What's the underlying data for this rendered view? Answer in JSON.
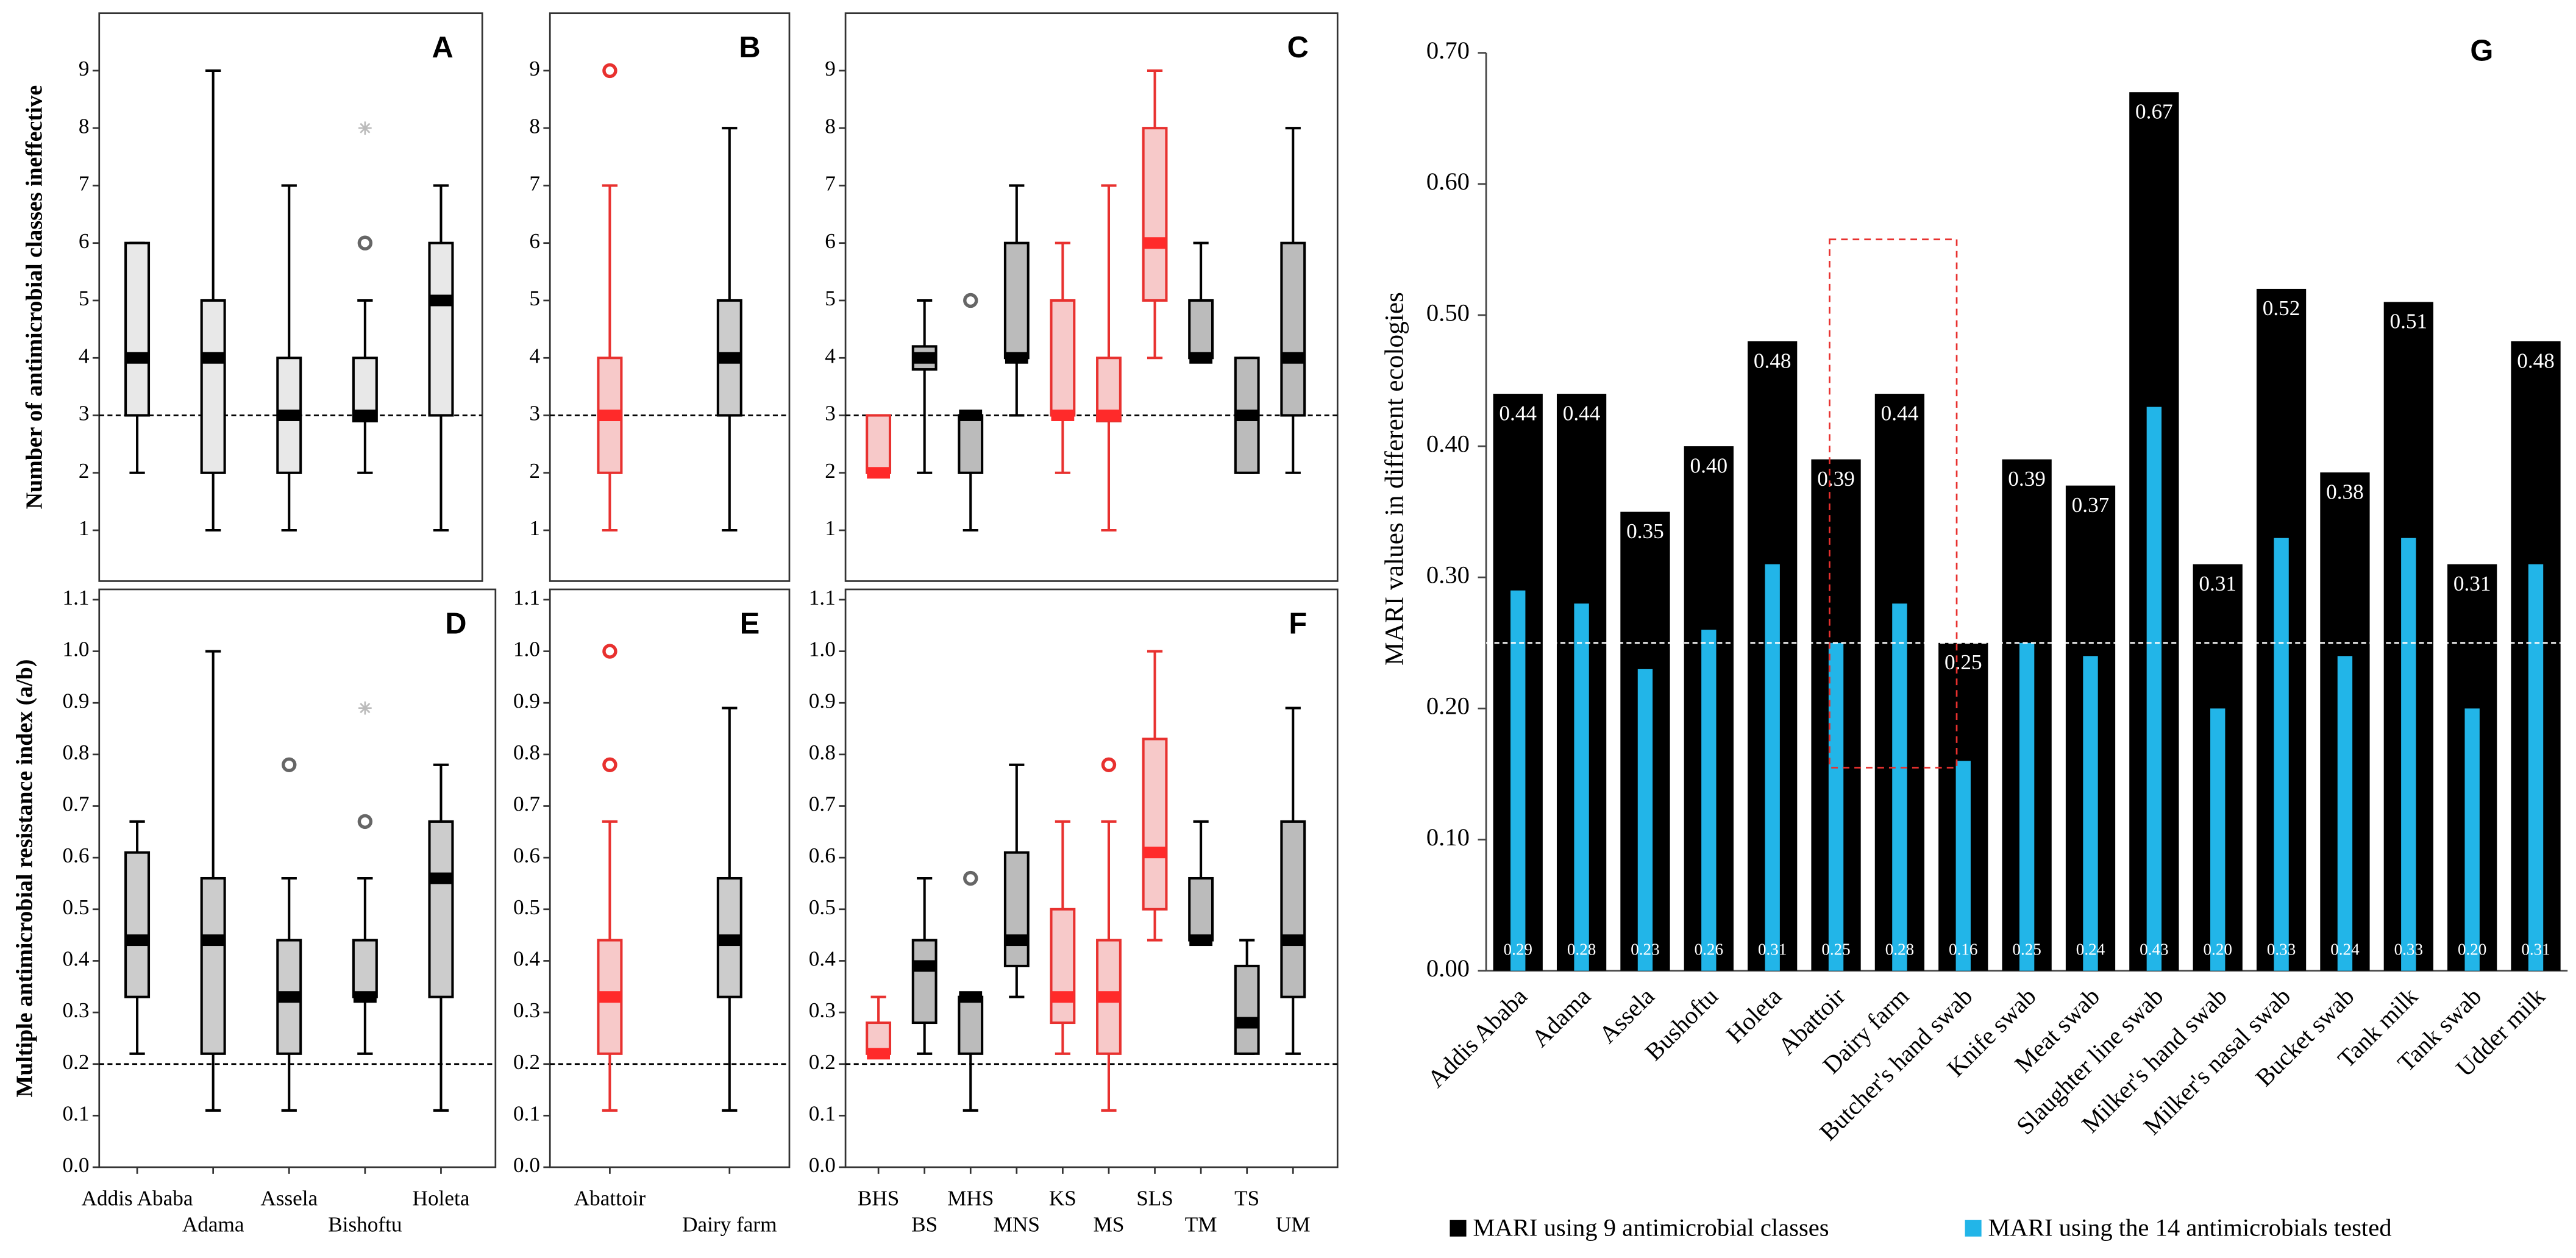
{
  "chart_data": [
    {
      "type": "box",
      "title": "A",
      "y_label": "Number of antimicrobial classes ineffective",
      "ylim": [
        0,
        10
      ],
      "yticks": [
        1,
        2,
        3,
        4,
        5,
        6,
        7,
        8,
        9
      ],
      "reference_line": 3,
      "colors": [
        "#000000",
        "#000000",
        "#000000",
        "#000000",
        "#000000"
      ],
      "fills": [
        "#e8e8e8",
        "#e8e8e8",
        "#e8e8e8",
        "#e8e8e8",
        "#e8e8e8"
      ],
      "whisker_low": [
        2,
        1,
        1,
        2,
        1
      ],
      "q1": [
        3,
        2,
        2,
        2.9,
        3
      ],
      "median": [
        4,
        4,
        3,
        3,
        5
      ],
      "q3": [
        6,
        5,
        4,
        4,
        6
      ],
      "whisker_high": [
        6,
        9,
        7,
        5,
        7
      ],
      "outliers": [
        [],
        [],
        [],
        [
          6
        ],
        []
      ],
      "extremes": [
        [],
        [],
        [],
        [
          8
        ],
        []
      ]
    },
    {
      "type": "box",
      "title": "B",
      "ylim": [
        0,
        10
      ],
      "yticks": [
        1,
        2,
        3,
        4,
        5,
        6,
        7,
        8,
        9
      ],
      "reference_line": 3,
      "colors": [
        "#e8312f",
        "#000000"
      ],
      "fills": [
        "#f7c9c9",
        "#cccccc"
      ],
      "whisker_low": [
        1,
        1
      ],
      "q1": [
        2,
        3
      ],
      "median": [
        3,
        4
      ],
      "q3": [
        4,
        5
      ],
      "whisker_high": [
        7,
        8
      ],
      "outliers": [
        [
          9
        ],
        []
      ],
      "extremes": [
        [],
        []
      ]
    },
    {
      "type": "box",
      "title": "C",
      "ylim": [
        0,
        10
      ],
      "yticks": [
        1,
        2,
        3,
        4,
        5,
        6,
        7,
        8,
        9
      ],
      "reference_line": 3,
      "colors": [
        "#e8312f",
        "#000000",
        "#000000",
        "#000000",
        "#e8312f",
        "#e8312f",
        "#e8312f",
        "#000000",
        "#000000",
        "#000000"
      ],
      "fills": [
        "#f7c9c9",
        "#bbbbbb",
        "#bbbbbb",
        "#bbbbbb",
        "#f7c9c9",
        "#f7c9c9",
        "#f7c9c9",
        "#bbbbbb",
        "#bbbbbb",
        "#bbbbbb"
      ],
      "whisker_low": [
        2,
        2,
        1,
        3,
        2,
        1,
        4,
        4,
        2,
        2
      ],
      "q1": [
        2,
        3.8,
        2,
        4,
        3,
        2.9,
        5,
        4,
        2,
        3
      ],
      "median": [
        2,
        4,
        3,
        4,
        3,
        3,
        6,
        4,
        3,
        4
      ],
      "q3": [
        3,
        4.2,
        3,
        6,
        5,
        4,
        8,
        5,
        4,
        6
      ],
      "whisker_high": [
        3,
        5,
        3,
        7,
        6,
        7,
        9,
        6,
        4,
        8
      ],
      "outliers": [
        [],
        [],
        [
          5
        ],
        [],
        [],
        [],
        [],
        [],
        [],
        []
      ],
      "extremes": [
        [],
        [],
        [],
        [],
        [],
        [],
        [],
        [],
        [],
        []
      ]
    },
    {
      "type": "box",
      "title": "D",
      "y_label": "Multiple antimicrobial resistance index (a/b)",
      "categories": [
        "Addis Ababa",
        "Adama",
        "Assela",
        "Bishoftu",
        "Holeta"
      ],
      "ylim": [
        0,
        1.12
      ],
      "yticks": [
        {
          "value": 0,
          "label": "0.0"
        },
        0.1,
        0.2,
        0.3,
        0.4,
        0.5,
        0.6,
        0.7,
        0.8,
        0.9,
        {
          "value": 1,
          "label": "1.0"
        },
        1.1
      ],
      "reference_line": 0.2,
      "colors": [
        "#000000",
        "#000000",
        "#000000",
        "#000000",
        "#000000"
      ],
      "fills": [
        "#cccccc",
        "#cccccc",
        "#cccccc",
        "#cccccc",
        "#cccccc"
      ],
      "whisker_low": [
        0.22,
        0.11,
        0.11,
        0.22,
        0.11
      ],
      "q1": [
        0.33,
        0.22,
        0.22,
        0.33,
        0.33
      ],
      "median": [
        0.44,
        0.44,
        0.33,
        0.33,
        0.56
      ],
      "q3": [
        0.61,
        0.56,
        0.44,
        0.44,
        0.67
      ],
      "whisker_high": [
        0.67,
        1.0,
        0.56,
        0.56,
        0.78
      ],
      "outliers": [
        [],
        [],
        [
          0.78
        ],
        [
          0.67
        ],
        []
      ],
      "extremes": [
        [],
        [],
        [],
        [
          0.89
        ],
        []
      ]
    },
    {
      "type": "box",
      "title": "E",
      "categories": [
        "Abattoir",
        "Dairy farm"
      ],
      "ylim": [
        0,
        1.12
      ],
      "yticks": [
        {
          "value": 0,
          "label": "0.0"
        },
        0.1,
        0.2,
        0.3,
        0.4,
        0.5,
        0.6,
        0.7,
        0.8,
        0.9,
        {
          "value": 1,
          "label": "1.0"
        },
        1.1
      ],
      "reference_line": 0.2,
      "colors": [
        "#e8312f",
        "#000000"
      ],
      "fills": [
        "#f7c9c9",
        "#cccccc"
      ],
      "whisker_low": [
        0.11,
        0.11
      ],
      "q1": [
        0.22,
        0.33
      ],
      "median": [
        0.33,
        0.44
      ],
      "q3": [
        0.44,
        0.56
      ],
      "whisker_high": [
        0.67,
        0.89
      ],
      "outliers": [
        [
          0.78,
          1.0
        ],
        []
      ],
      "extremes": [
        [],
        []
      ]
    },
    {
      "type": "box",
      "title": "F",
      "categories": [
        "BHS",
        "BS",
        "MHS",
        "MNS",
        "KS",
        "MS",
        "SLS",
        "TM",
        "TS",
        "UM"
      ],
      "ylim": [
        0,
        1.12
      ],
      "yticks": [
        {
          "value": 0,
          "label": "0.0"
        },
        0.1,
        0.2,
        0.3,
        0.4,
        0.5,
        0.6,
        0.7,
        0.8,
        0.9,
        {
          "value": 1,
          "label": "1.0"
        },
        1.1
      ],
      "reference_line": 0.2,
      "colors": [
        "#e8312f",
        "#000000",
        "#000000",
        "#000000",
        "#e8312f",
        "#e8312f",
        "#e8312f",
        "#000000",
        "#000000",
        "#000000"
      ],
      "fills": [
        "#f7c9c9",
        "#bbbbbb",
        "#bbbbbb",
        "#bbbbbb",
        "#f7c9c9",
        "#f7c9c9",
        "#f7c9c9",
        "#bbbbbb",
        "#bbbbbb",
        "#bbbbbb"
      ],
      "whisker_low": [
        0.22,
        0.22,
        0.11,
        0.33,
        0.22,
        0.11,
        0.44,
        0.44,
        0.22,
        0.22
      ],
      "q1": [
        0.22,
        0.28,
        0.22,
        0.39,
        0.28,
        0.22,
        0.5,
        0.44,
        0.22,
        0.33
      ],
      "median": [
        0.22,
        0.39,
        0.33,
        0.44,
        0.33,
        0.33,
        0.61,
        0.44,
        0.28,
        0.44
      ],
      "q3": [
        0.28,
        0.44,
        0.33,
        0.61,
        0.5,
        0.44,
        0.83,
        0.56,
        0.39,
        0.67
      ],
      "whisker_high": [
        0.33,
        0.56,
        0.33,
        0.78,
        0.67,
        0.67,
        1.0,
        0.67,
        0.44,
        0.89
      ],
      "outliers": [
        [],
        [],
        [
          0.56
        ],
        [],
        [],
        [
          0.78
        ],
        [],
        [],
        [],
        []
      ],
      "extremes": [
        [],
        [],
        [],
        [],
        [],
        [],
        [],
        [],
        [],
        []
      ]
    },
    {
      "type": "bar",
      "title": "G",
      "y_label": "MARI values in different ecologies",
      "categories": [
        "Addis Ababa",
        "Adama",
        "Assela",
        "Bushoftu",
        "Holeta",
        "Abattoir",
        "Dairy farm",
        "Butcher's hand swab",
        "Knife swab",
        "Meat swab",
        "Slaughter line swab",
        "Milker's hand swab",
        "Milker's nasal swab",
        "Bucket swab",
        "Tank milk",
        "Tank swab",
        "Udder milk"
      ],
      "ylim": [
        0,
        0.7
      ],
      "yticks": [
        {
          "value": 0,
          "label": "0.00"
        },
        {
          "value": 0.1,
          "label": "0.10"
        },
        {
          "value": 0.2,
          "label": "0.20"
        },
        {
          "value": 0.3,
          "label": "0.30"
        },
        {
          "value": 0.4,
          "label": "0.40"
        },
        {
          "value": 0.5,
          "label": "0.50"
        },
        {
          "value": 0.6,
          "label": "0.60"
        },
        {
          "value": 0.7,
          "label": "0.70"
        }
      ],
      "reference_line": 0.25,
      "legend": "bottom",
      "series": [
        {
          "name": "MARI using 9 antimicrobial classes",
          "color": "#000000",
          "values": [
            0.44,
            0.44,
            0.35,
            0.4,
            0.48,
            0.39,
            0.44,
            0.25,
            0.39,
            0.37,
            0.67,
            0.31,
            0.52,
            0.38,
            0.51,
            0.31,
            0.48
          ],
          "value_labels": [
            "0.44",
            "0.44",
            "0.35",
            "0.40",
            "0.48",
            "0.39",
            "0.44",
            "0.25",
            "0.39",
            "0.37",
            "0.67",
            "0.31",
            "0.52",
            "0.38",
            "0.51",
            "0.31",
            "0.48"
          ]
        },
        {
          "name": "MARI using the 14 antimicrobials tested",
          "color": "#22b5e8",
          "values": [
            0.29,
            0.28,
            0.23,
            0.26,
            0.31,
            0.25,
            0.28,
            0.16,
            0.25,
            0.24,
            0.43,
            0.2,
            0.33,
            0.24,
            0.33,
            0.2,
            0.31
          ],
          "value_labels": [
            "0.29",
            "0.28",
            "0.23",
            "0.26",
            "0.31",
            "0.25",
            "0.28",
            "0.16",
            "0.25",
            "0.24",
            "0.43",
            "0.20",
            "0.33",
            "0.24",
            "0.33",
            "0.20",
            "0.31"
          ]
        }
      ]
    }
  ]
}
